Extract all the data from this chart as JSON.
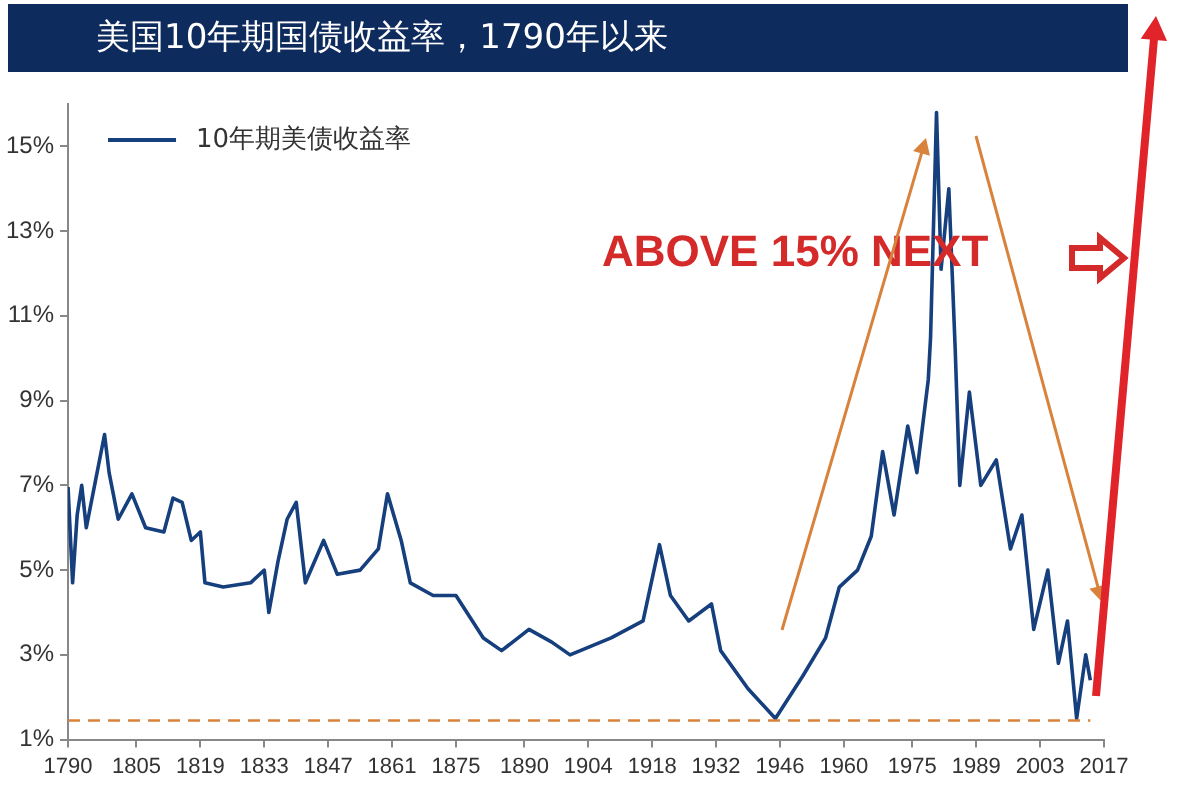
{
  "chart_data": {
    "type": "line",
    "title": "美国10年期国债收益率，1790年以来",
    "annotations": [
      "ABOVE 15% NEXT"
    ],
    "x": [
      1790,
      1791,
      1792,
      1793,
      1794,
      1796,
      1798,
      1799,
      1801,
      1804,
      1807,
      1811,
      1813,
      1815,
      1817,
      1819,
      1820,
      1824,
      1830,
      1833,
      1834,
      1836,
      1838,
      1840,
      1842,
      1846,
      1849,
      1854,
      1858,
      1860,
      1863,
      1865,
      1870,
      1875,
      1878,
      1881,
      1885,
      1891,
      1896,
      1900,
      1909,
      1916,
      1919.6,
      1922,
      1926,
      1931,
      1933,
      1939,
      1945,
      1951,
      1956,
      1959,
      1963,
      1966,
      1968.5,
      1971,
      1974,
      1976,
      1978.5,
      1979,
      1980.3,
      1981.3,
      1983,
      1984.4,
      1985.4,
      1987.5,
      1990,
      1993.4,
      1996.5,
      1999,
      2001.6,
      2004.7,
      2007,
      2009,
      2011,
      2013,
      2014
    ],
    "series": [
      {
        "name": "10年期美债收益率",
        "color": "#163f7e",
        "values": [
          6.96,
          4.7,
          6.3,
          7.0,
          6.0,
          7.1,
          8.2,
          7.3,
          6.2,
          6.8,
          6.0,
          5.9,
          6.7,
          6.6,
          5.7,
          5.9,
          4.7,
          4.6,
          4.7,
          5.0,
          4.0,
          5.2,
          6.2,
          6.6,
          4.7,
          5.7,
          4.9,
          5.0,
          5.5,
          6.8,
          5.7,
          4.7,
          4.4,
          4.4,
          3.9,
          3.4,
          3.1,
          3.6,
          3.3,
          3.0,
          3.4,
          3.8,
          5.6,
          4.4,
          3.8,
          4.2,
          3.1,
          2.2,
          1.5,
          2.5,
          3.4,
          4.6,
          5.0,
          5.8,
          7.8,
          6.3,
          8.4,
          7.3,
          9.5,
          10.5,
          15.8,
          12.1,
          14.0,
          10.2,
          7.0,
          9.2,
          7.0,
          7.6,
          5.5,
          6.3,
          3.6,
          5.0,
          2.8,
          3.8,
          1.5,
          3.0,
          2.4
        ]
      }
    ],
    "xlim": [
      1790,
      2017
    ],
    "xticks": [
      1790,
      1805,
      1819,
      1833,
      1847,
      1861,
      1875,
      1890,
      1904,
      1918,
      1932,
      1946,
      1960,
      1975,
      1989,
      2003,
      2017
    ],
    "ylim": [
      1,
      16
    ],
    "yticks": [
      {
        "value": 1,
        "label": "1%"
      },
      {
        "value": 3,
        "label": "3%"
      },
      {
        "value": 5,
        "label": "5%"
      },
      {
        "value": 7,
        "label": "7%"
      },
      {
        "value": 9,
        "label": "9%"
      },
      {
        "value": 11,
        "label": "11%"
      },
      {
        "value": 13,
        "label": "13%"
      },
      {
        "value": 15,
        "label": "15%"
      }
    ],
    "ref_lines": [
      {
        "axis": "y",
        "value": 1.45,
        "color": "#d9823b",
        "line_style": "dashed"
      }
    ],
    "grid": false,
    "legend": "top left",
    "marker": "none",
    "line_style": "solid"
  }
}
